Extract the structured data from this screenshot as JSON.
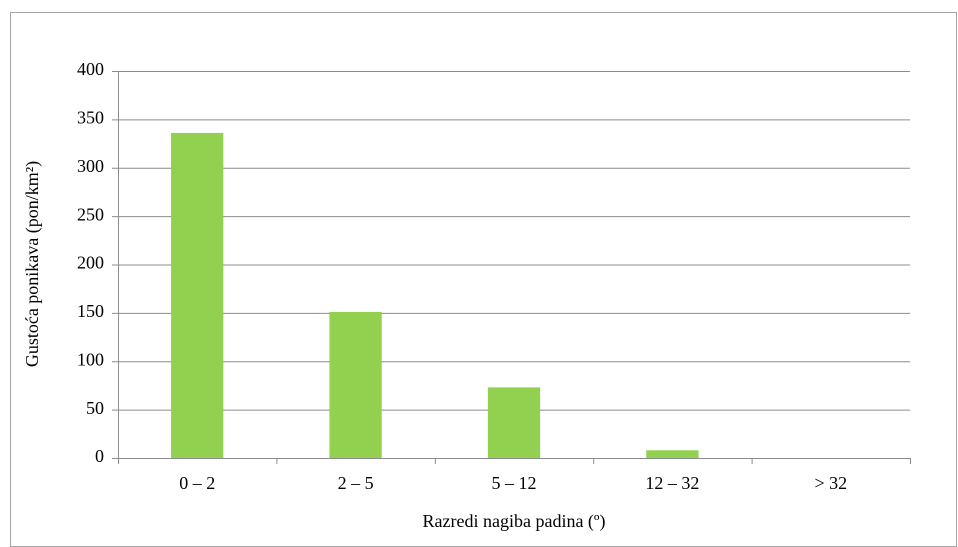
{
  "chart_data": {
    "type": "bar",
    "categories": [
      "0 – 2",
      "2 – 5",
      "5 – 12",
      "12 – 32",
      "> 32"
    ],
    "values": [
      336,
      151,
      73,
      8,
      0
    ],
    "color": "#92d050",
    "ylim": [
      0,
      400
    ],
    "yticks": [
      0,
      50,
      100,
      150,
      200,
      250,
      300,
      350,
      400
    ],
    "grid": true,
    "y_label": "Gustoća ponikava (pon/km²)",
    "x_label": "Razredi nagiba padina (º)"
  }
}
